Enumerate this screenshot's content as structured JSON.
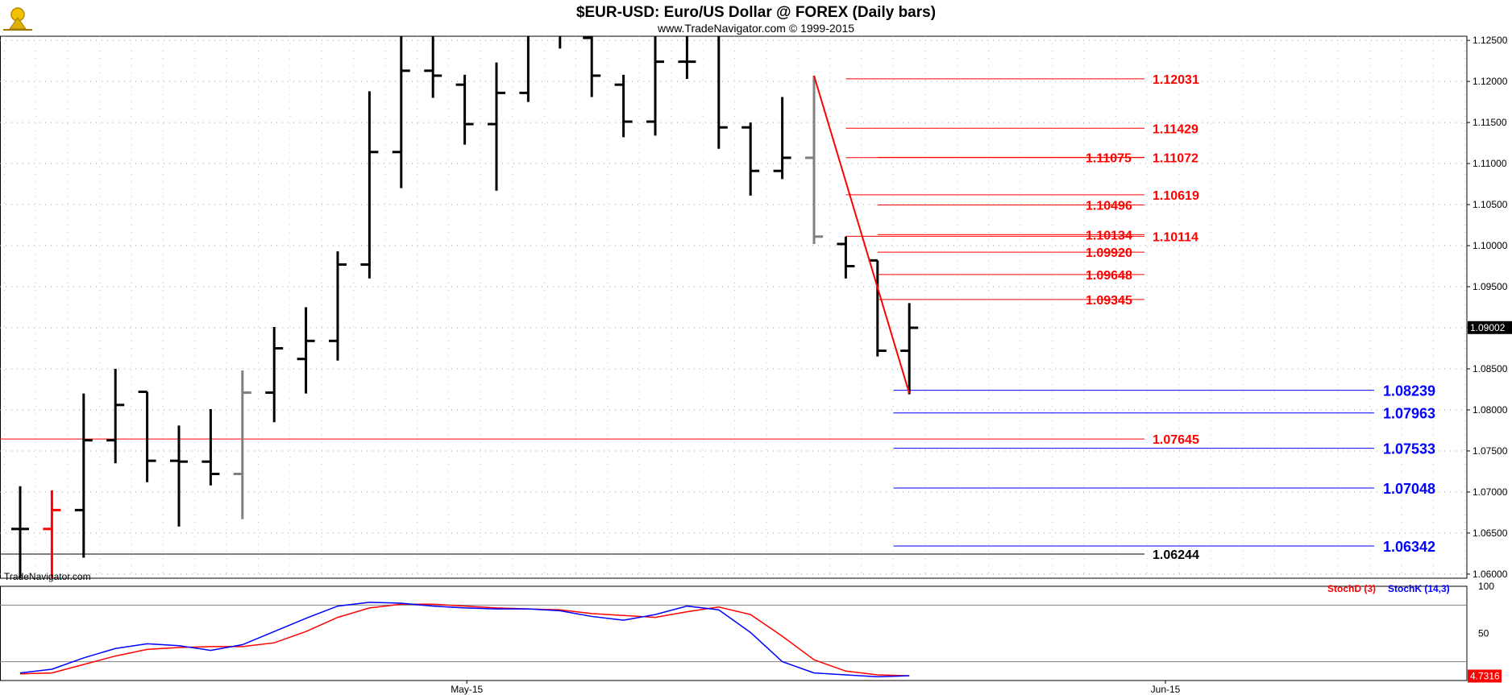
{
  "chart_data": {
    "type": "ohlc",
    "title": "$EUR-USD:  Euro/US Dollar @ FOREX  (Daily bars)",
    "subtitle": "www.TradeNavigator.com © 1999-2015",
    "watermark": "TradeNavigator.com",
    "ylim": [
      1.0595,
      1.1255
    ],
    "y_ticks": [
      "1.12500",
      "1.12000",
      "1.11500",
      "1.11000",
      "1.10500",
      "1.10000",
      "1.09500",
      "1.09000",
      "1.08500",
      "1.08000",
      "1.07500",
      "1.07000",
      "1.06500",
      "1.06000"
    ],
    "x_ticks": [
      {
        "label": "May-15",
        "bar": 13
      },
      {
        "label": "Jun-15",
        "bar": 35
      }
    ],
    "last_price": "1.09002",
    "bars": [
      {
        "o": 1.0655,
        "h": 1.0707,
        "l": 1.0595,
        "c": 1.0655,
        "color": "#000000"
      },
      {
        "o": 1.0655,
        "h": 1.0702,
        "l": 1.0595,
        "c": 1.0678,
        "color": "#ff0000"
      },
      {
        "o": 1.0678,
        "h": 1.082,
        "l": 1.062,
        "c": 1.0763,
        "color": "#000000"
      },
      {
        "o": 1.0763,
        "h": 1.085,
        "l": 1.0735,
        "c": 1.0806,
        "color": "#000000"
      },
      {
        "o": 1.0822,
        "h": 1.0822,
        "l": 1.0712,
        "c": 1.0738,
        "color": "#000000"
      },
      {
        "o": 1.0738,
        "h": 1.0781,
        "l": 1.0658,
        "c": 1.0737,
        "color": "#000000"
      },
      {
        "o": 1.0737,
        "h": 1.0801,
        "l": 1.0708,
        "c": 1.0722,
        "color": "#000000"
      },
      {
        "o": 1.0722,
        "h": 1.0848,
        "l": 1.0667,
        "c": 1.0821,
        "color": "#808080"
      },
      {
        "o": 1.0821,
        "h": 1.0901,
        "l": 1.0785,
        "c": 1.0875,
        "color": "#000000"
      },
      {
        "o": 1.0862,
        "h": 1.0925,
        "l": 1.082,
        "c": 1.0884,
        "color": "#000000"
      },
      {
        "o": 1.0884,
        "h": 1.0993,
        "l": 1.086,
        "c": 1.0977,
        "color": "#000000"
      },
      {
        "o": 1.0977,
        "h": 1.1188,
        "l": 1.096,
        "c": 1.1114,
        "color": "#000000"
      },
      {
        "o": 1.1114,
        "h": 1.1265,
        "l": 1.107,
        "c": 1.1213,
        "color": "#000000"
      },
      {
        "o": 1.1213,
        "h": 1.1265,
        "l": 1.118,
        "c": 1.1207,
        "color": "#000000"
      },
      {
        "o": 1.1196,
        "h": 1.1208,
        "l": 1.1123,
        "c": 1.1148,
        "color": "#000000"
      },
      {
        "o": 1.1148,
        "h": 1.1223,
        "l": 1.1067,
        "c": 1.1186,
        "color": "#000000"
      },
      {
        "o": 1.1186,
        "h": 1.1265,
        "l": 1.1175,
        "c": 1.1265,
        "color": "#000000"
      },
      {
        "o": 1.1265,
        "h": 1.1265,
        "l": 1.124,
        "c": 1.1265,
        "color": "#000000"
      },
      {
        "o": 1.1253,
        "h": 1.1265,
        "l": 1.1181,
        "c": 1.1207,
        "color": "#000000"
      },
      {
        "o": 1.1196,
        "h": 1.1208,
        "l": 1.1132,
        "c": 1.1151,
        "color": "#000000"
      },
      {
        "o": 1.1151,
        "h": 1.1265,
        "l": 1.1134,
        "c": 1.1224,
        "color": "#000000"
      },
      {
        "o": 1.1224,
        "h": 1.1265,
        "l": 1.1203,
        "c": 1.1224,
        "color": "#000000"
      },
      {
        "o": 1.1265,
        "h": 1.1265,
        "l": 1.1118,
        "c": 1.1144,
        "color": "#000000"
      },
      {
        "o": 1.1144,
        "h": 1.115,
        "l": 1.1061,
        "c": 1.1091,
        "color": "#000000"
      },
      {
        "o": 1.1091,
        "h": 1.1181,
        "l": 1.1081,
        "c": 1.1107,
        "color": "#000000"
      },
      {
        "o": 1.1107,
        "h": 1.1207,
        "l": 1.1002,
        "c": 1.1011,
        "color": "#808080"
      },
      {
        "o": 1.1002,
        "h": 1.1011,
        "l": 1.096,
        "c": 1.0975,
        "color": "#000000"
      },
      {
        "o": 1.0982,
        "h": 1.0982,
        "l": 1.0865,
        "c": 1.0872,
        "color": "#000000"
      },
      {
        "o": 1.0872,
        "h": 1.093,
        "l": 1.0819,
        "c": 1.09,
        "color": "#000000"
      }
    ],
    "fib_lines": [
      {
        "value": 1.12031,
        "label": "1.12031",
        "color": "#ff0000",
        "x0": 26,
        "x1": 34.5
      },
      {
        "value": 1.11429,
        "label": "1.11429",
        "color": "#ff0000",
        "x0": 26,
        "x1": 34.5
      },
      {
        "value": 1.11072,
        "label": "1.11072",
        "color": "#ff0000",
        "x0": 26,
        "x1": 34.5
      },
      {
        "value": 1.10619,
        "label": "1.10619",
        "color": "#ff0000",
        "x0": 26,
        "x1": 34.5
      },
      {
        "value": 1.10114,
        "label": "1.10114",
        "color": "#ff0000",
        "x0": 26,
        "x1": 34.5
      },
      {
        "value": 1.07645,
        "label": "1.07645",
        "color": "#ff0000",
        "x0": -2,
        "x1": 34.5
      },
      {
        "value": 1.06244,
        "label": "1.06244",
        "color": "#000000",
        "x0": -2,
        "x1": 34.5
      }
    ],
    "fib_lines_left_labels": [
      {
        "value": 1.11075,
        "label": "1.11075"
      },
      {
        "value": 1.10496,
        "label": "1.10496"
      },
      {
        "value": 1.10134,
        "label": "1.10134"
      },
      {
        "value": 1.0992,
        "label": "1.09920"
      },
      {
        "value": 1.09648,
        "label": "1.09648"
      },
      {
        "value": 1.09345,
        "label": "1.09345"
      }
    ],
    "fib_blue": [
      {
        "value": 1.08239,
        "label": "1.08239"
      },
      {
        "value": 1.07963,
        "label": "1.07963"
      },
      {
        "value": 1.07533,
        "label": "1.07533"
      },
      {
        "value": 1.07048,
        "label": "1.07048"
      },
      {
        "value": 1.06342,
        "label": "1.06342"
      }
    ],
    "trendline": {
      "from": {
        "bar": 25,
        "value": 1.1207
      },
      "to": {
        "bar": 28,
        "value": 1.082
      },
      "color": "#ff0000"
    },
    "stochastic": {
      "title_d": "StochD (3)",
      "title_k": "StochK (14,3)",
      "ylim": [
        0,
        100
      ],
      "y_ticks": [
        "100",
        "50"
      ],
      "reference_levels": [
        80,
        20
      ],
      "last_value": "4.7316",
      "k": [
        8,
        12,
        24,
        34,
        39,
        37,
        32,
        38,
        52,
        66,
        79,
        83,
        82,
        79,
        77,
        76,
        76,
        74,
        68,
        64,
        70,
        79,
        75,
        51,
        20,
        8,
        6,
        4,
        5
      ],
      "d": [
        7,
        8,
        17,
        26,
        33,
        35,
        36,
        36,
        40,
        52,
        67,
        77,
        81,
        81,
        79,
        77,
        76,
        75,
        71,
        69,
        67,
        73,
        78,
        70,
        47,
        22,
        10,
        6,
        5
      ]
    }
  }
}
